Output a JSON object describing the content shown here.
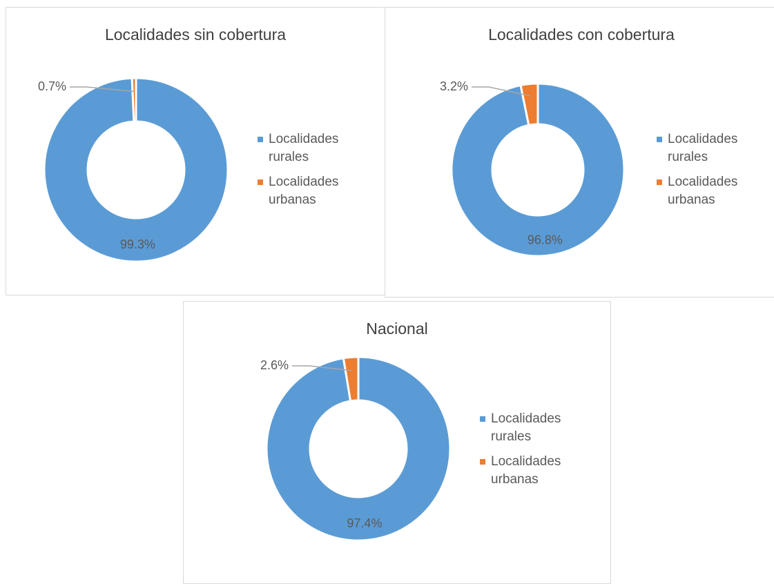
{
  "chart_data": [
    {
      "type": "donut",
      "title": "Localidades sin cobertura",
      "categories": [
        "Localidades rurales",
        "Localidades urbanas"
      ],
      "values": [
        99.3,
        0.7
      ],
      "value_labels": [
        "99.3%",
        "0.7%"
      ],
      "colors": [
        "#5b9bd5",
        "#ed7d31"
      ],
      "legend": "right"
    },
    {
      "type": "donut",
      "title": "Localidades con cobertura",
      "categories": [
        "Localidades rurales",
        "Localidades urbanas"
      ],
      "values": [
        96.8,
        3.2
      ],
      "value_labels": [
        "96.8%",
        "3.2%"
      ],
      "colors": [
        "#5b9bd5",
        "#ed7d31"
      ],
      "legend": "right"
    },
    {
      "type": "donut",
      "title": "Nacional",
      "categories": [
        "Localidades rurales",
        "Localidades urbanas"
      ],
      "values": [
        97.4,
        2.6
      ],
      "value_labels": [
        "97.4%",
        "2.6%"
      ],
      "colors": [
        "#5b9bd5",
        "#ed7d31"
      ],
      "legend": "right"
    }
  ]
}
